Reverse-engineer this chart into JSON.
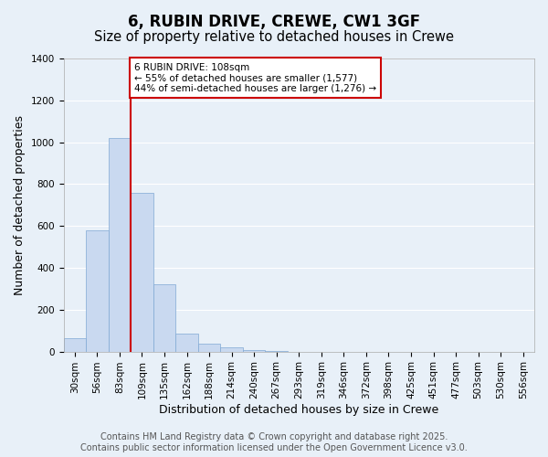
{
  "title": "6, RUBIN DRIVE, CREWE, CW1 3GF",
  "subtitle": "Size of property relative to detached houses in Crewe",
  "xlabel": "Distribution of detached houses by size in Crewe",
  "ylabel": "Number of detached properties",
  "bar_values": [
    65,
    580,
    1020,
    760,
    320,
    85,
    38,
    18,
    8,
    2,
    0,
    0,
    0,
    0,
    0,
    0,
    0,
    0,
    0,
    0,
    0
  ],
  "bar_labels": [
    "30sqm",
    "56sqm",
    "83sqm",
    "109sqm",
    "135sqm",
    "162sqm",
    "188sqm",
    "214sqm",
    "240sqm",
    "267sqm",
    "293sqm",
    "319sqm",
    "346sqm",
    "372sqm",
    "398sqm",
    "425sqm",
    "451sqm",
    "477sqm",
    "503sqm",
    "530sqm",
    "556sqm"
  ],
  "bar_color": "#c9d9f0",
  "bar_edgecolor": "#7fa8d4",
  "vline_x": 3,
  "vline_color": "#cc0000",
  "annotation_title": "6 RUBIN DRIVE: 108sqm",
  "annotation_line1": "← 55% of detached houses are smaller (1,577)",
  "annotation_line2": "44% of semi-detached houses are larger (1,276) →",
  "annotation_box_color": "#ffffff",
  "annotation_box_edgecolor": "#cc0000",
  "ylim": [
    0,
    1400
  ],
  "yticks": [
    0,
    200,
    400,
    600,
    800,
    1000,
    1200,
    1400
  ],
  "background_color": "#e8f0f8",
  "plot_background": "#e8f0f8",
  "grid_color": "#ffffff",
  "footer_line1": "Contains HM Land Registry data © Crown copyright and database right 2025.",
  "footer_line2": "Contains public sector information licensed under the Open Government Licence v3.0.",
  "title_fontsize": 12,
  "subtitle_fontsize": 10.5,
  "xlabel_fontsize": 9,
  "ylabel_fontsize": 9,
  "tick_fontsize": 7.5,
  "footer_fontsize": 7
}
